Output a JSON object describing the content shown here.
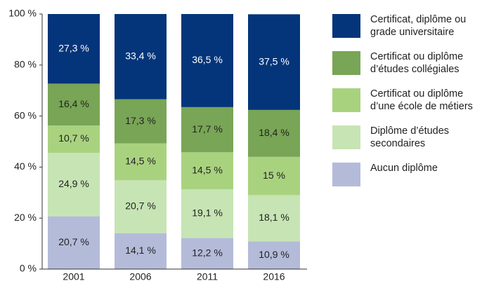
{
  "chart_data": {
    "type": "stacked_bar",
    "categories": [
      "2001",
      "2006",
      "2011",
      "2016"
    ],
    "series": [
      {
        "name": "Aucun diplôme",
        "color": "#b4bbd9",
        "label_color": "#222222",
        "values": [
          20.7,
          14.1,
          12.2,
          10.9
        ],
        "value_labels": [
          "20,7 %",
          "14,1 %",
          "12,2 %",
          "10,9 %"
        ]
      },
      {
        "name": "Diplôme d’études secondaires",
        "color": "#c7e4b4",
        "label_color": "#222222",
        "values": [
          24.9,
          20.7,
          19.1,
          18.1
        ],
        "value_labels": [
          "24,9 %",
          "20,7 %",
          "19,1 %",
          "18,1 %"
        ]
      },
      {
        "name": "Certificat ou diplôme d’une école de métiers",
        "color": "#a9d27f",
        "label_color": "#222222",
        "values": [
          10.7,
          14.5,
          14.5,
          15
        ],
        "value_labels": [
          "10,7 %",
          "14,5 %",
          "14,5 %",
          "15 %"
        ]
      },
      {
        "name": "Certificat ou diplôme d’études collégiales",
        "color": "#79a556",
        "label_color": "#222222",
        "values": [
          16.4,
          17.3,
          17.7,
          18.4
        ],
        "value_labels": [
          "16,4 %",
          "17,3 %",
          "17,7 %",
          "18,4 %"
        ]
      },
      {
        "name": "Certificat, diplôme ou grade universitaire",
        "color": "#04357a",
        "label_color": "#ffffff",
        "values": [
          27.3,
          33.4,
          36.5,
          37.5
        ],
        "value_labels": [
          "27,3 %",
          "33,4 %",
          "36,5 %",
          "37,5 %"
        ]
      }
    ],
    "ylim": [
      0,
      100
    ],
    "yticks": [
      {
        "value": 0,
        "label": "0 %"
      },
      {
        "value": 20,
        "label": "20 %"
      },
      {
        "value": 40,
        "label": "40 %"
      },
      {
        "value": 60,
        "label": "60 %"
      },
      {
        "value": 80,
        "label": "80 %"
      },
      {
        "value": 100,
        "label": "100 %"
      }
    ],
    "legend": "right"
  }
}
